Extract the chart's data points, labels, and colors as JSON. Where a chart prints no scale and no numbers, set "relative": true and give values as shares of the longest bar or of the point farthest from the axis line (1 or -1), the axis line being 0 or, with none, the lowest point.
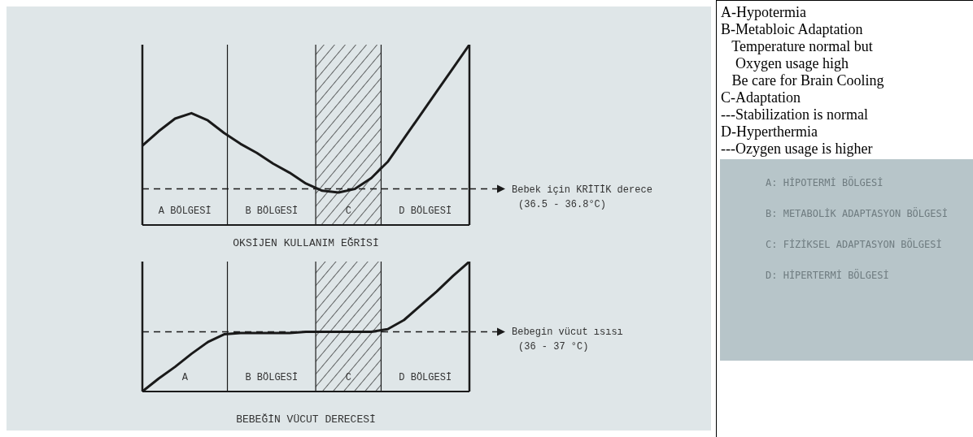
{
  "chart_data": [
    {
      "type": "line",
      "relative": true,
      "xlabel": "OKSİJEN KULLANIM EĞRİSİ",
      "marker": "none",
      "line_style": "solid",
      "annotations": [
        "A BÖLGESİ",
        "B BÖLGESİ",
        "C",
        "D BÖLGESİ"
      ],
      "categories": [
        null,
        null,
        null,
        null,
        null,
        null,
        null,
        null,
        null,
        null,
        null,
        null,
        null,
        null,
        null,
        null,
        null,
        null,
        null,
        null,
        null
      ],
      "series": [
        {
          "color": "#1a1a1a",
          "values": [
            0.44,
            0.52,
            0.59,
            0.62,
            0.58,
            0.51,
            0.45,
            0.4,
            0.34,
            0.29,
            0.23,
            0.19,
            0.18,
            0.2,
            0.26,
            0.35,
            0.48,
            0.61,
            0.74,
            0.87,
            1.0
          ]
        }
      ],
      "ref_lines": [
        {
          "axis": "y",
          "value": 0.2,
          "label": "Bebek için KRİTİK derece\n(36.5 - 36.8°C)",
          "line_style": "dashed",
          "color": "#1a1a1a"
        }
      ]
    },
    {
      "type": "line",
      "relative": true,
      "xlabel": "BEBEĞİN VÜCUT DERECESİ",
      "marker": "none",
      "line_style": "solid",
      "annotations": [
        "A",
        "B BÖLGESİ",
        "C",
        "D BÖLGESİ"
      ],
      "categories": [
        null,
        null,
        null,
        null,
        null,
        null,
        null,
        null,
        null,
        null,
        null,
        null,
        null,
        null,
        null,
        null,
        null,
        null,
        null,
        null,
        null
      ],
      "series": [
        {
          "color": "#1a1a1a",
          "values": [
            0,
            0.1,
            0.19,
            0.29,
            0.38,
            0.44,
            0.45,
            0.45,
            0.45,
            0.45,
            0.46,
            0.46,
            0.46,
            0.46,
            0.46,
            0.48,
            0.55,
            0.66,
            0.77,
            0.89,
            1.0
          ]
        }
      ],
      "ref_lines": [
        {
          "axis": "y",
          "value": 0.46,
          "label": "Bebegin vücut ısısı\n(36 - 37 °C)",
          "line_style": "dashed",
          "color": "#1a1a1a"
        }
      ]
    },
    {
      "type": "other",
      "annotations": [
        "A-Hypotermia",
        "B-Metabloic Adaptation",
        "   Temperature normal but",
        "    Oxygen usage high",
        "   Be care for Brain Cooling",
        "C-Adaptation",
        "---Stabilization is normal",
        "D-Hyperthermia",
        "---Ozygen usage is higher",
        "A: HİPOTERMİ BÖLGESİ",
        "B: METABOLİK ADAPTASYON BÖLGESİ",
        "C: FİZİKSEL ADAPTASYON BÖLGESİ",
        "D: HİPERTERMİ BÖLGESİ"
      ]
    }
  ]
}
